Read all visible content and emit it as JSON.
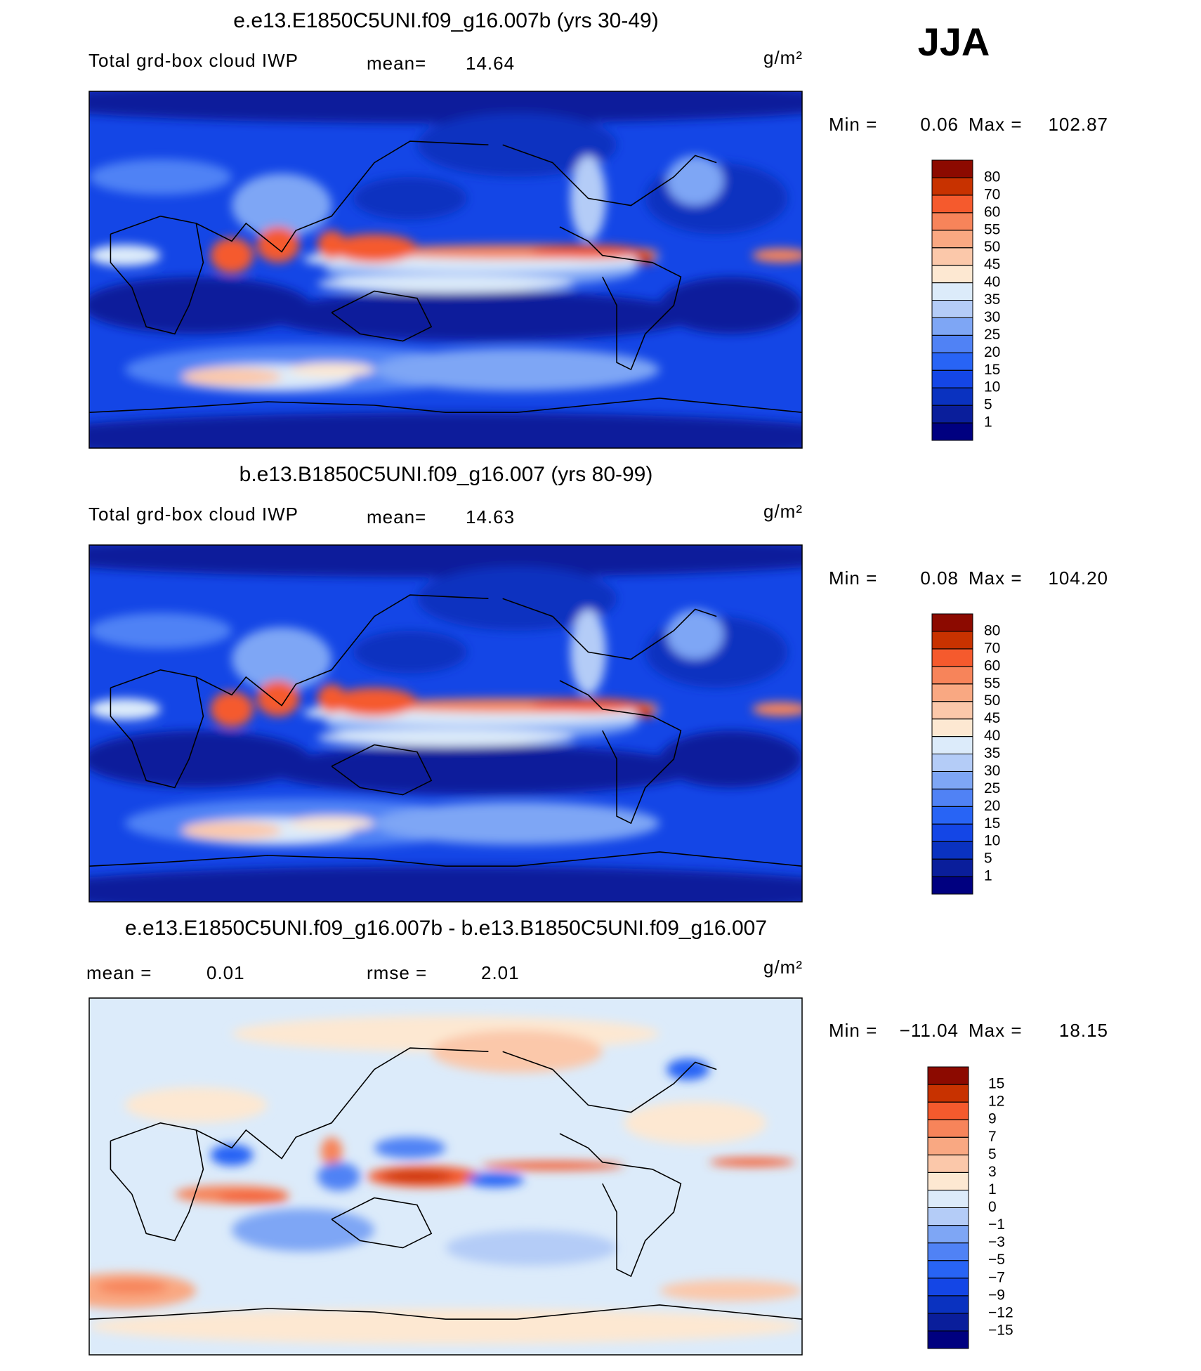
{
  "season": "JJA",
  "chart_data": [
    {
      "type": "contour-map",
      "title": "e.e13.E1850C5UNI.f09_g16.007b (yrs 30-49)",
      "variable": "Total grd-box cloud IWP",
      "mean_label": "mean=",
      "mean": 14.64,
      "units": "g/m²",
      "min_label": "Min =",
      "min": 0.06,
      "max_label": "Max =",
      "max": 102.87,
      "levels": [
        1,
        5,
        10,
        15,
        20,
        25,
        30,
        35,
        40,
        45,
        50,
        55,
        60,
        70,
        80
      ],
      "colors": [
        "#000080",
        "#0a1e9b",
        "#0a32c0",
        "#1446e6",
        "#2864f5",
        "#5082f5",
        "#7ea6f5",
        "#b4ccf7",
        "#dcebfa",
        "#fde8d2",
        "#fbc8aa",
        "#f9a882",
        "#f7845a",
        "#f55a2d",
        "#c83200",
        "#8c0a00"
      ]
    },
    {
      "type": "contour-map",
      "title": "b.e13.B1850C5UNI.f09_g16.007 (yrs 80-99)",
      "variable": "Total grd-box cloud IWP",
      "mean_label": "mean=",
      "mean": 14.63,
      "units": "g/m²",
      "min_label": "Min =",
      "min": 0.08,
      "max_label": "Max =",
      "max": {
        "value": 104.2,
        "label": "104.20"
      },
      "levels": [
        1,
        5,
        10,
        15,
        20,
        25,
        30,
        35,
        40,
        45,
        50,
        55,
        60,
        70,
        80
      ],
      "colors": [
        "#000080",
        "#0a1e9b",
        "#0a32c0",
        "#1446e6",
        "#2864f5",
        "#5082f5",
        "#7ea6f5",
        "#b4ccf7",
        "#dcebfa",
        "#fde8d2",
        "#fbc8aa",
        "#f9a882",
        "#f7845a",
        "#f55a2d",
        "#c83200",
        "#8c0a00"
      ]
    },
    {
      "type": "contour-map",
      "title": "e.e13.E1850C5UNI.f09_g16.007b - b.e13.B1850C5UNI.f09_g16.007",
      "mean_label": "mean =",
      "mean": 0.01,
      "rmse_label": "rmse =",
      "rmse": 2.01,
      "units": "g/m²",
      "min_label": "Min =",
      "min": {
        "value": -11.04,
        "label": "−11.04"
      },
      "max_label": "Max =",
      "max": 18.15,
      "levels": [
        {
          "value": -15,
          "label": "−15"
        },
        {
          "value": -12,
          "label": "−12"
        },
        {
          "value": -9,
          "label": "−9"
        },
        {
          "value": -7,
          "label": "−7"
        },
        {
          "value": -5,
          "label": "−5"
        },
        {
          "value": -3,
          "label": "−3"
        },
        {
          "value": -1,
          "label": "−1"
        },
        0,
        1,
        3,
        5,
        7,
        9,
        12,
        15
      ],
      "colors": [
        "#000080",
        "#0a1e9b",
        "#0a32c0",
        "#1446e6",
        "#2864f5",
        "#5082f5",
        "#7ea6f5",
        "#b4ccf7",
        "#dcebfa",
        "#fde8d2",
        "#fbc8aa",
        "#f9a882",
        "#f7845a",
        "#f55a2d",
        "#c83200",
        "#8c0a00"
      ]
    }
  ]
}
